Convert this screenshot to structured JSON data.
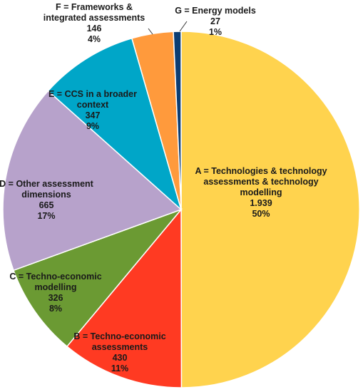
{
  "chart_data": {
    "type": "pie",
    "title": "",
    "start_angle_deg": 0,
    "direction": "clockwise",
    "slices": [
      {
        "key": "A",
        "label_lines": [
          "A = Technologies & technology",
          "assessments & technology",
          "modelling"
        ],
        "value_text": "1.939",
        "value": 1939,
        "percent_text": "50%",
        "color": "#FFD34E"
      },
      {
        "key": "B",
        "label_lines": [
          "B = Techno-economic",
          "assessments"
        ],
        "value_text": "430",
        "value": 430,
        "percent_text": "11%",
        "color": "#FF3A22"
      },
      {
        "key": "C",
        "label_lines": [
          "C = Techno-economic",
          "modelling"
        ],
        "value_text": "326",
        "value": 326,
        "percent_text": "8%",
        "color": "#6B9A33"
      },
      {
        "key": "D",
        "label_lines": [
          "D = Other assessment",
          "dimensions"
        ],
        "value_text": "665",
        "value": 665,
        "percent_text": "17%",
        "color": "#B7A2CB"
      },
      {
        "key": "E",
        "label_lines": [
          "E = CCS in a broader",
          "context"
        ],
        "value_text": "347",
        "value": 347,
        "percent_text": "9%",
        "color": "#00A6C8"
      },
      {
        "key": "F",
        "label_lines": [
          "F = Frameworks &",
          "integrated assessments"
        ],
        "value_text": "146",
        "value": 146,
        "percent_text": "4%",
        "color": "#FF9A3C"
      },
      {
        "key": "G",
        "label_lines": [
          "G = Energy models"
        ],
        "value_text": "27",
        "value": 27,
        "percent_text": "1%",
        "color": "#0B3D73"
      }
    ]
  }
}
